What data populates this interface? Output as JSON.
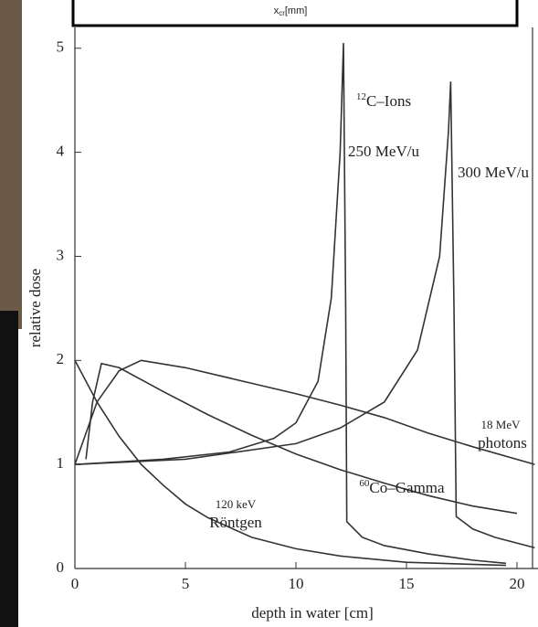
{
  "header": {
    "axis_var": "x",
    "axis_sub": "cr",
    "axis_unit": "[mm]"
  },
  "chart_data": {
    "type": "line",
    "x_label": "depth in water [cm]",
    "y_label": "relative dose",
    "xlim": [
      0,
      20.95
    ],
    "ylim": [
      0,
      5.2
    ],
    "xticks": [
      0,
      5,
      10,
      15,
      20
    ],
    "yticks": [
      0,
      1,
      2,
      3,
      4,
      5
    ],
    "color": "#333333",
    "annotation": {
      "sup": "12",
      "text": "C–Ions"
    },
    "series": [
      {
        "label_lines": [
          "120 keV",
          "Röntgen"
        ],
        "x": [
          0,
          1,
          2,
          3,
          4,
          5,
          6,
          8,
          10,
          12,
          15,
          19.5
        ],
        "values": [
          2.0,
          1.6,
          1.27,
          1.0,
          0.8,
          0.62,
          0.49,
          0.3,
          0.19,
          0.12,
          0.06,
          0.03
        ]
      },
      {
        "label_lines": [
          "Co–Gamma"
        ],
        "label_sup": "60",
        "x": [
          0.5,
          0.8,
          1.2,
          2,
          4,
          6,
          8,
          10,
          12,
          14,
          16,
          18,
          20
        ],
        "values": [
          1.05,
          1.6,
          1.97,
          1.93,
          1.7,
          1.48,
          1.28,
          1.1,
          0.95,
          0.82,
          0.7,
          0.6,
          0.53
        ]
      },
      {
        "label_lines": [
          "18 MeV",
          "photons"
        ],
        "x": [
          0,
          0.5,
          1,
          2,
          3,
          5,
          8,
          10,
          12,
          14,
          16,
          18,
          20.8
        ],
        "values": [
          1.0,
          1.3,
          1.6,
          1.9,
          2.0,
          1.93,
          1.78,
          1.68,
          1.57,
          1.45,
          1.3,
          1.17,
          1.0
        ]
      },
      {
        "label_lines": [
          "250 MeV/u"
        ],
        "x": [
          0,
          4,
          7,
          9,
          10,
          11,
          11.6,
          12,
          12.15,
          12.25,
          12.3,
          13,
          14,
          16,
          18,
          19.5
        ],
        "values": [
          1.0,
          1.05,
          1.12,
          1.25,
          1.4,
          1.8,
          2.6,
          4.0,
          5.05,
          2.5,
          0.45,
          0.3,
          0.22,
          0.14,
          0.08,
          0.05
        ]
      },
      {
        "label_lines": [
          "300 MeV/u"
        ],
        "x": [
          0,
          5,
          10,
          12,
          14,
          15.5,
          16.5,
          16.9,
          17.0,
          17.15,
          17.25,
          18,
          19,
          20.8
        ],
        "values": [
          1.0,
          1.05,
          1.2,
          1.35,
          1.6,
          2.1,
          3.0,
          4.2,
          4.68,
          2.5,
          0.5,
          0.38,
          0.3,
          0.2
        ]
      }
    ]
  }
}
